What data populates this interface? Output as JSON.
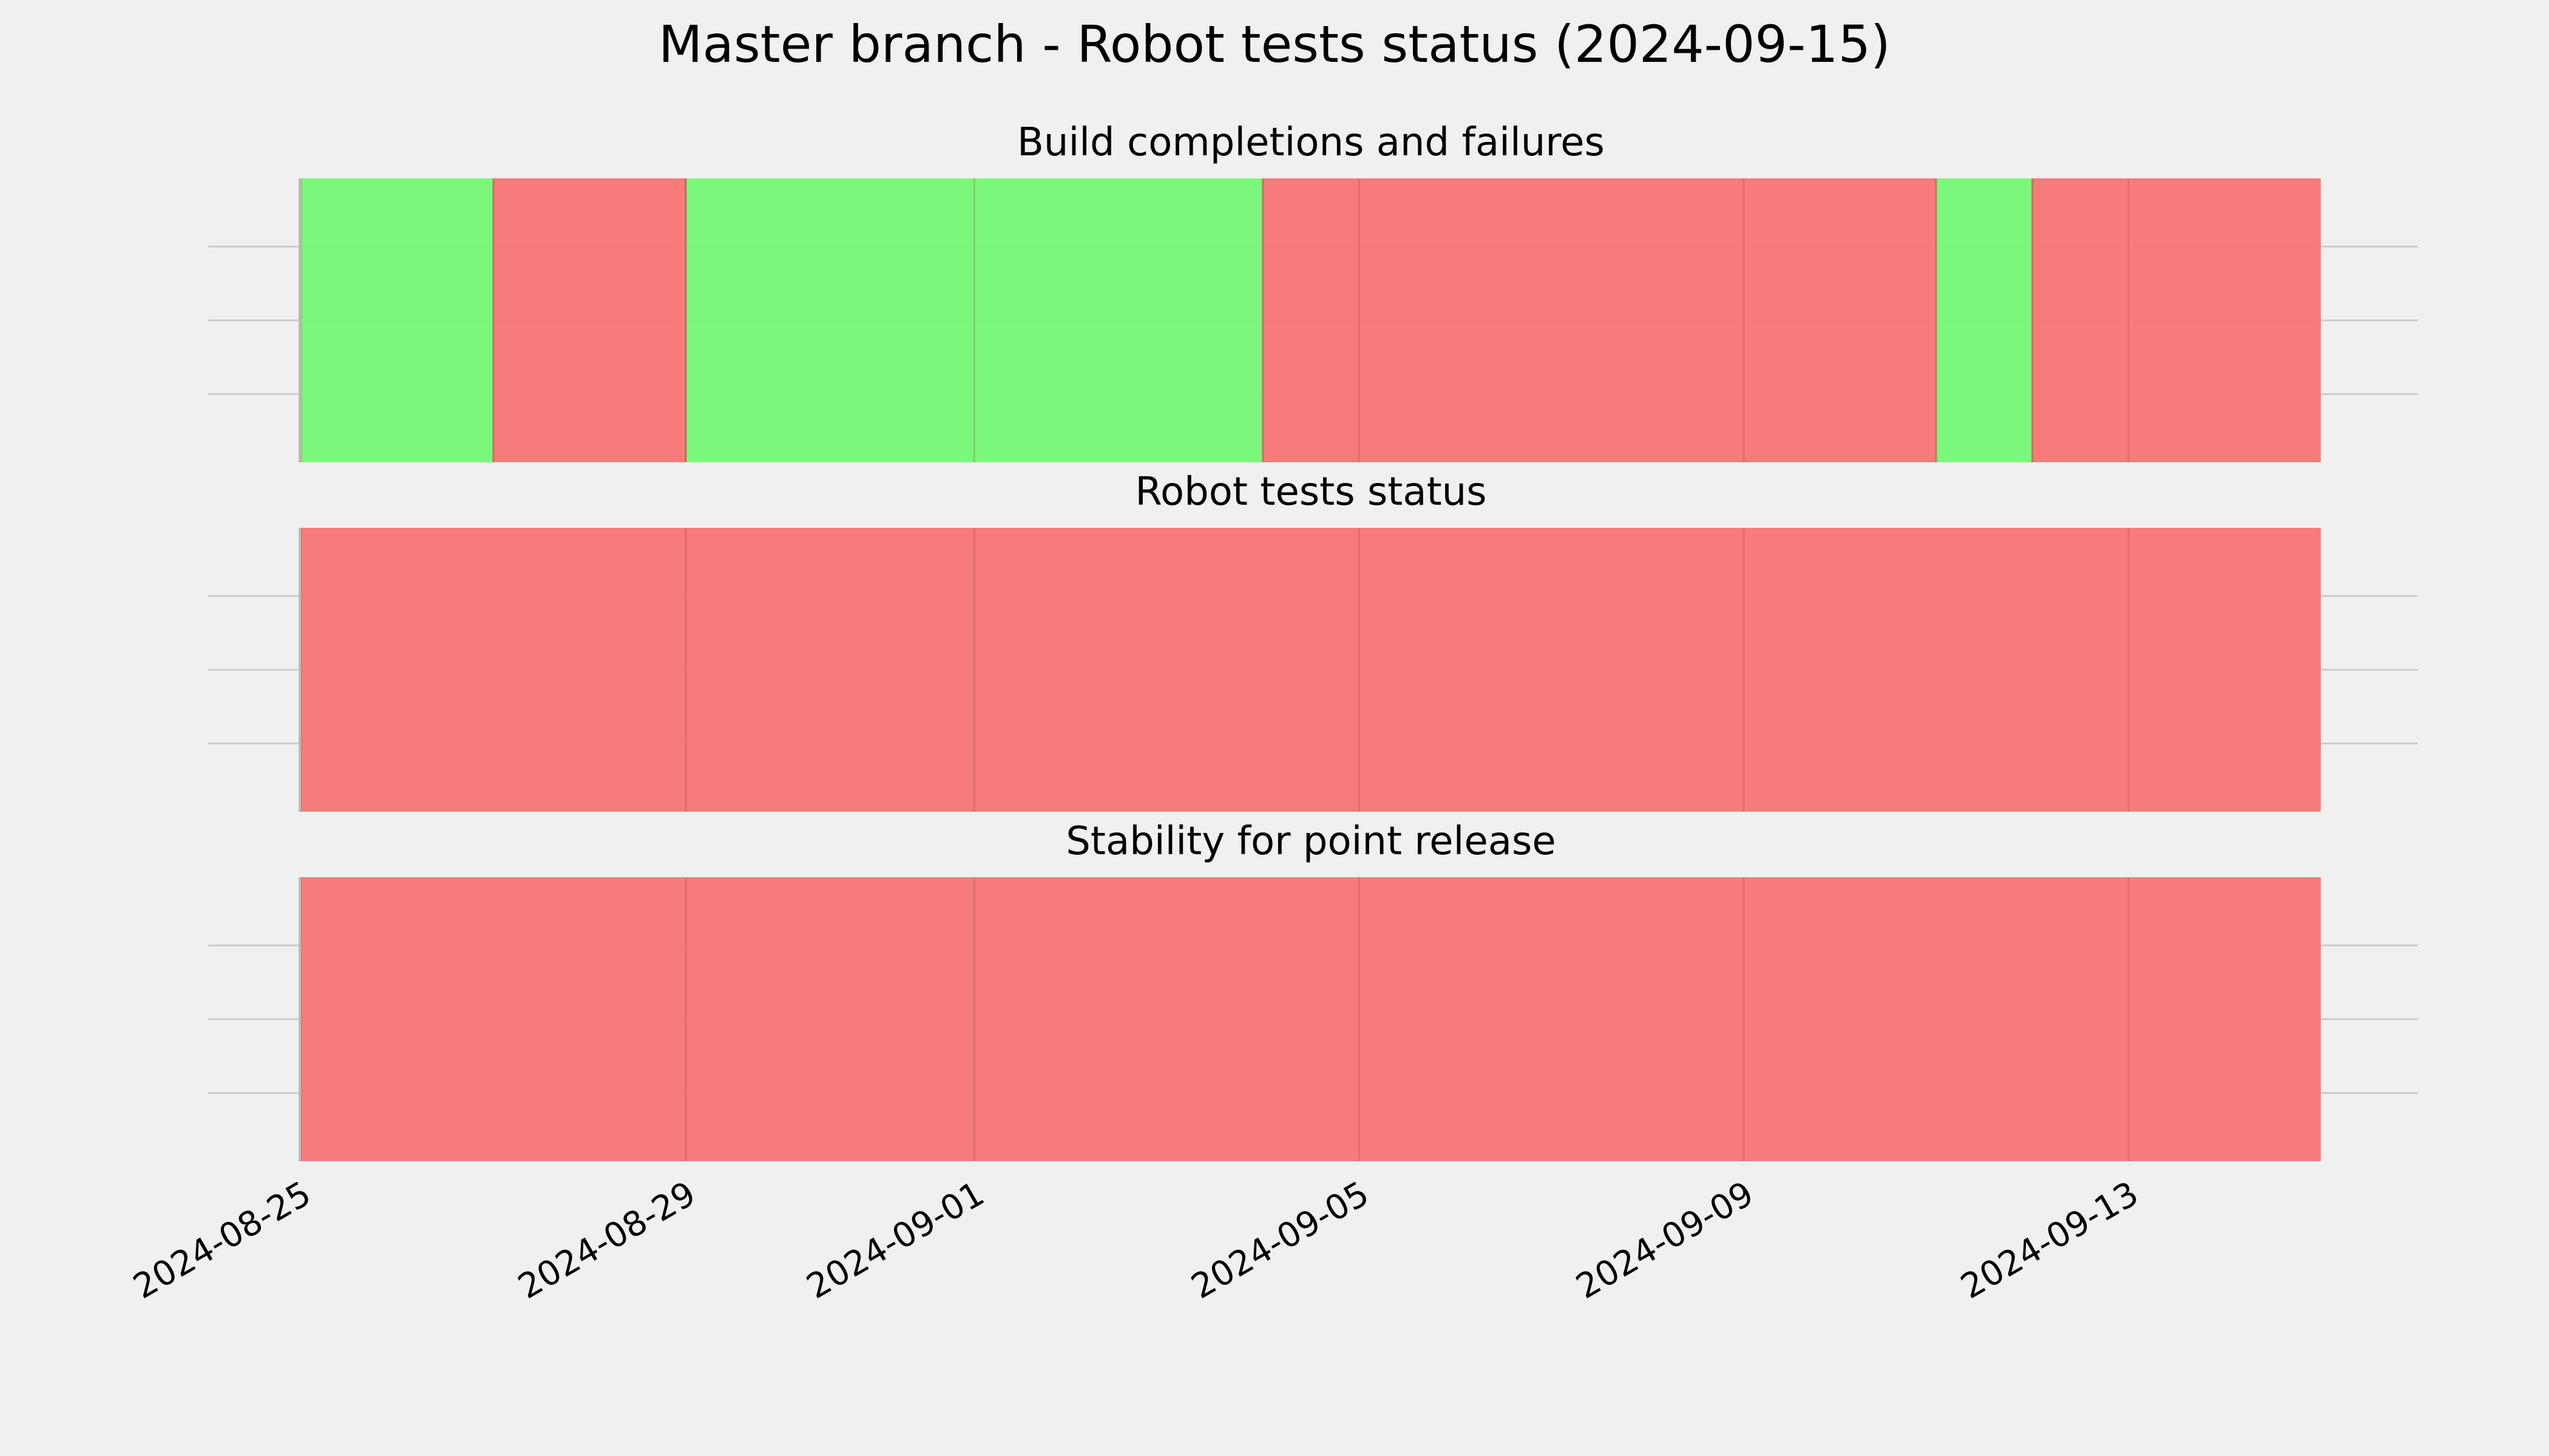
{
  "chart_data": {
    "type": "timeline",
    "title": "Master branch - Robot tests status (2024-09-15)",
    "x_axis": {
      "range": [
        "2024-08-25",
        "2024-09-15"
      ],
      "ticks": [
        "2024-08-25",
        "2024-08-29",
        "2024-09-01",
        "2024-09-05",
        "2024-09-09",
        "2024-09-13"
      ],
      "grid": true
    },
    "colors": {
      "pass": "#77f777",
      "fail": "#f77777",
      "background": "#f0f0f0",
      "grid": "#cccccc"
    },
    "panels": [
      {
        "title": "Build completions and failures",
        "segments": [
          {
            "start": "2024-08-25",
            "end": "2024-08-27",
            "status": "pass"
          },
          {
            "start": "2024-08-27",
            "end": "2024-08-29",
            "status": "fail"
          },
          {
            "start": "2024-08-29",
            "end": "2024-09-04",
            "status": "pass"
          },
          {
            "start": "2024-09-04",
            "end": "2024-09-11",
            "status": "fail"
          },
          {
            "start": "2024-09-11",
            "end": "2024-09-12",
            "status": "pass"
          },
          {
            "start": "2024-09-12",
            "end": "2024-09-15",
            "status": "fail"
          }
        ]
      },
      {
        "title": "Robot tests status",
        "segments": [
          {
            "start": "2024-08-25",
            "end": "2024-09-15",
            "status": "fail"
          }
        ]
      },
      {
        "title": "Stability for point release",
        "segments": [
          {
            "start": "2024-08-25",
            "end": "2024-09-15",
            "status": "fail"
          }
        ]
      }
    ]
  }
}
